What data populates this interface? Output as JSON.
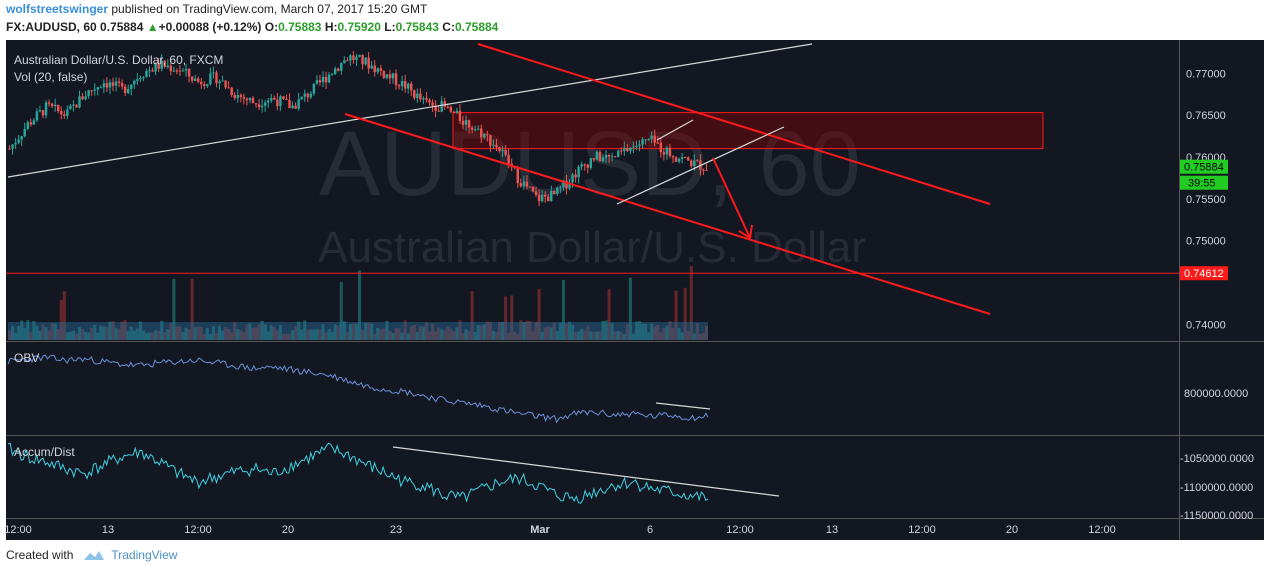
{
  "header": {
    "author": "wolfstreetswinger",
    "published_text": "published on TradingView.com, March 07, 2017 15:20 GMT",
    "symbol": "FX:AUDUSD, 60",
    "last": "0.75884",
    "change": "+0.00088 (+0.12%)",
    "open_label": "O:",
    "open": "0.75883",
    "high_label": "H:",
    "high": "0.75920",
    "low_label": "L:",
    "low": "0.75843",
    "close_label": "C:",
    "close": "0.75884"
  },
  "footer": {
    "created_with": "Created with",
    "brand": "TradingView"
  },
  "chart_data": {
    "type": "line",
    "title": "Australian Dollar/U.S. Dollar, 60, FXCM",
    "watermark_symbol": "AUDUSD, 60",
    "watermark_name": "Australian Dollar/U.S. Dollar",
    "main_pane": {
      "volume_label": "Vol (20, false)",
      "ylim": [
        0.7385,
        0.7735
      ],
      "y_ticks": [
        "0.77000",
        "0.76500",
        "0.76000",
        "0.75500",
        "0.75000",
        "0.74000"
      ],
      "price_series": [
        0.761,
        0.764,
        0.766,
        0.765,
        0.7675,
        0.769,
        0.768,
        0.77,
        0.771,
        0.7705,
        0.769,
        0.7695,
        0.7675,
        0.7665,
        0.767,
        0.766,
        0.7678,
        0.77,
        0.772,
        0.7712,
        0.7698,
        0.7685,
        0.7665,
        0.766,
        0.7645,
        0.763,
        0.761,
        0.7575,
        0.755,
        0.7555,
        0.758,
        0.76,
        0.7598,
        0.7612,
        0.762,
        0.7605,
        0.7595,
        0.7588
      ],
      "last_price_label": "0.75884",
      "countdown_label": "39:55",
      "support_price_label": "0.74612",
      "support_level": 0.74612,
      "supply_zone": [
        0.761,
        0.7653
      ],
      "accent_colors": {
        "up": "#26a69a",
        "down": "#ef5350",
        "lines": "#ff1a1a",
        "zone": "#8b0000"
      }
    },
    "obv_pane": {
      "label": "OBV",
      "y_ticks": [
        "800000.0000"
      ],
      "series": [
        1.0,
        1.02,
        1.03,
        1.01,
        1.02,
        1.0,
        0.98,
        0.97,
        0.99,
        1.0,
        1.01,
        0.99,
        0.97,
        0.95,
        0.96,
        0.94,
        0.92,
        0.9,
        0.86,
        0.82,
        0.8,
        0.78,
        0.75,
        0.72,
        0.7,
        0.68,
        0.65,
        0.62,
        0.6,
        0.58,
        0.62,
        0.63,
        0.61,
        0.62,
        0.6,
        0.61,
        0.59,
        0.6
      ]
    },
    "accum_pane": {
      "label": "Accum/Dist",
      "y_ticks": [
        "-1050000.0000",
        "-1100000.0000",
        "-1150000.0000"
      ],
      "series": [
        1.0,
        0.95,
        0.92,
        0.88,
        0.85,
        0.9,
        0.95,
        0.98,
        0.92,
        0.85,
        0.8,
        0.83,
        0.86,
        0.88,
        0.85,
        0.9,
        0.95,
        1.0,
        0.96,
        0.9,
        0.85,
        0.8,
        0.78,
        0.72,
        0.7,
        0.75,
        0.8,
        0.82,
        0.78,
        0.72,
        0.7,
        0.74,
        0.78,
        0.8,
        0.76,
        0.74,
        0.72,
        0.7
      ]
    },
    "x_ticks": [
      "12:00",
      "13",
      "12:00",
      "20",
      "23",
      "Mar",
      "6",
      "12:00",
      "13",
      "12:00",
      "20",
      "12:00"
    ],
    "xlabel": "",
    "ylabel": "",
    "grid": false
  }
}
